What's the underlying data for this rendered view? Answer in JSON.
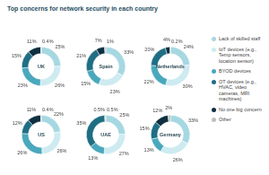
{
  "title": "Top concerns for network security in each country",
  "chart_data": [
    {
      "type": "doughnut",
      "title": "UK",
      "categories": [
        "Lack of skilled staff",
        "IoT devices (e.g., Temp sensors, location sensor)",
        "BYOD devices",
        "OT devices (e.g., HVAC, video cameras, MRI machines)",
        "No one big concern",
        "Other"
      ],
      "values": [
        25,
        26,
        23,
        15,
        11,
        0.4
      ],
      "value_labels": [
        "25%",
        "26%",
        "23%",
        "15%",
        "11%",
        "0.4%"
      ],
      "colors": [
        "#a6d8e2",
        "#cdebf0",
        "#4aa8bd",
        "#1f6e84",
        "#0e3040",
        "#bfbfbf"
      ],
      "data_labels": true,
      "legend": "right"
    },
    {
      "type": "doughnut",
      "title": "Spain",
      "categories": [
        "Lack of skilled staff",
        "IoT devices (e.g., Temp sensors, location sensor)",
        "BYOD devices",
        "OT devices (e.g., HVAC, video cameras, MRI machines)",
        "No one big concern",
        "Other"
      ],
      "values": [
        33,
        23,
        15,
        21,
        7,
        1
      ],
      "value_labels": [
        "33%",
        "23%",
        "15%",
        "21%",
        "7%",
        "1%"
      ],
      "colors": [
        "#a6d8e2",
        "#cdebf0",
        "#4aa8bd",
        "#1f6e84",
        "#0e3040",
        "#bfbfbf"
      ],
      "data_labels": true,
      "legend": "right"
    },
    {
      "type": "doughnut",
      "title": "Netherlands",
      "categories": [
        "Lack of skilled staff",
        "IoT devices (e.g., Temp sensors, location sensor)",
        "BYOD devices",
        "OT devices (e.g., HVAC, video cameras, MRI machines)",
        "No one big concern",
        "Other"
      ],
      "values": [
        24,
        30,
        22,
        20,
        4,
        0.2
      ],
      "value_labels": [
        "24%",
        "30%",
        "22%",
        "20%",
        "4%",
        "0.2%"
      ],
      "colors": [
        "#a6d8e2",
        "#cdebf0",
        "#4aa8bd",
        "#1f6e84",
        "#0e3040",
        "#bfbfbf"
      ],
      "data_labels": true,
      "legend": "right"
    },
    {
      "type": "doughnut",
      "title": "US",
      "categories": [
        "Lack of skilled staff",
        "IoT devices (e.g., Temp sensors, location sensor)",
        "BYOD devices",
        "OT devices (e.g., HVAC, video cameras, MRI machines)",
        "No one big concern",
        "Other"
      ],
      "values": [
        22,
        26,
        26,
        12,
        11,
        0.4
      ],
      "value_labels": [
        "22%",
        "26%",
        "26%",
        "12%",
        "11%",
        "0.4%"
      ],
      "colors": [
        "#a6d8e2",
        "#cdebf0",
        "#4aa8bd",
        "#1f6e84",
        "#0e3040",
        "#bfbfbf"
      ],
      "data_labels": true,
      "legend": "right"
    },
    {
      "type": "doughnut",
      "title": "UAE",
      "categories": [
        "Lack of skilled staff",
        "IoT devices (e.g., Temp sensors, location sensor)",
        "BYOD devices",
        "OT devices (e.g., HVAC, video cameras, MRI machines)",
        "No one big concern",
        "Other"
      ],
      "values": [
        25,
        27,
        13,
        35,
        0.5,
        0.5
      ],
      "value_labels": [
        "25%",
        "27%",
        "13%",
        "35%",
        "0.5%",
        "0.5%"
      ],
      "colors": [
        "#a6d8e2",
        "#cdebf0",
        "#4aa8bd",
        "#1f6e84",
        "#0e3040",
        "#bfbfbf"
      ],
      "data_labels": true,
      "legend": "right"
    },
    {
      "type": "doughnut",
      "title": "Germany",
      "categories": [
        "Lack of skilled staff",
        "IoT devices (e.g., Temp sensors, location sensor)",
        "BYOD devices",
        "OT devices (e.g., HVAC, video cameras, MRI machines)",
        "No one big concern",
        "Other"
      ],
      "values": [
        33,
        26,
        13,
        15,
        12,
        2
      ],
      "value_labels": [
        "33%",
        "26%",
        "13%",
        "15%",
        "12%",
        "2%"
      ],
      "colors": [
        "#a6d8e2",
        "#cdebf0",
        "#4aa8bd",
        "#1f6e84",
        "#0e3040",
        "#bfbfbf"
      ],
      "data_labels": true,
      "legend": "right"
    }
  ]
}
